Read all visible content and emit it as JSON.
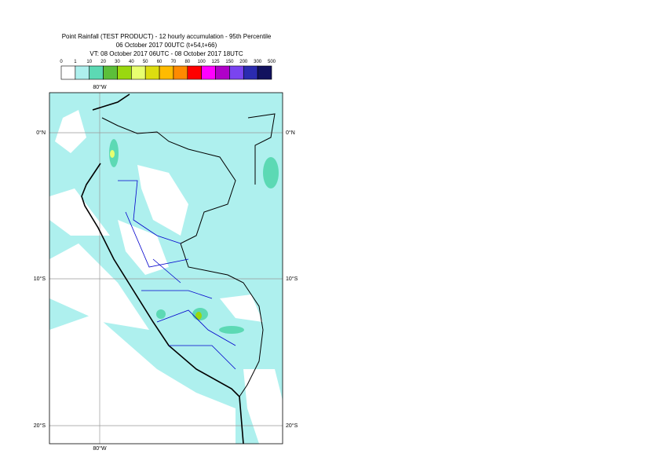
{
  "header": {
    "title": "Point Rainfall (TEST PRODUCT) - 12 hourly accumulation - 95th Percentile",
    "base_time": "06 October 2017 00UTC (t+54,t+66)",
    "valid_time": "VT: 08 October 2017 06UTC - 08 October 2017 18UTC"
  },
  "legend": {
    "labels": [
      "0",
      "1",
      "10",
      "20",
      "30",
      "40",
      "50",
      "60",
      "70",
      "80",
      "100",
      "125",
      "150",
      "200",
      "300",
      "500"
    ],
    "colors": [
      "#ffffff",
      "#aef0ee",
      "#5cd9b4",
      "#5cbf3a",
      "#9ad80f",
      "#e8ff70",
      "#dddd10",
      "#ffbb00",
      "#ff8a00",
      "#ff0000",
      "#ff00ff",
      "#b000c8",
      "#7a44f0",
      "#2b2bb0",
      "#12125e"
    ]
  },
  "map": {
    "lon_labels": [
      "80°W"
    ],
    "lat_labels": [
      "0°N",
      "10°S",
      "20°S"
    ]
  }
}
